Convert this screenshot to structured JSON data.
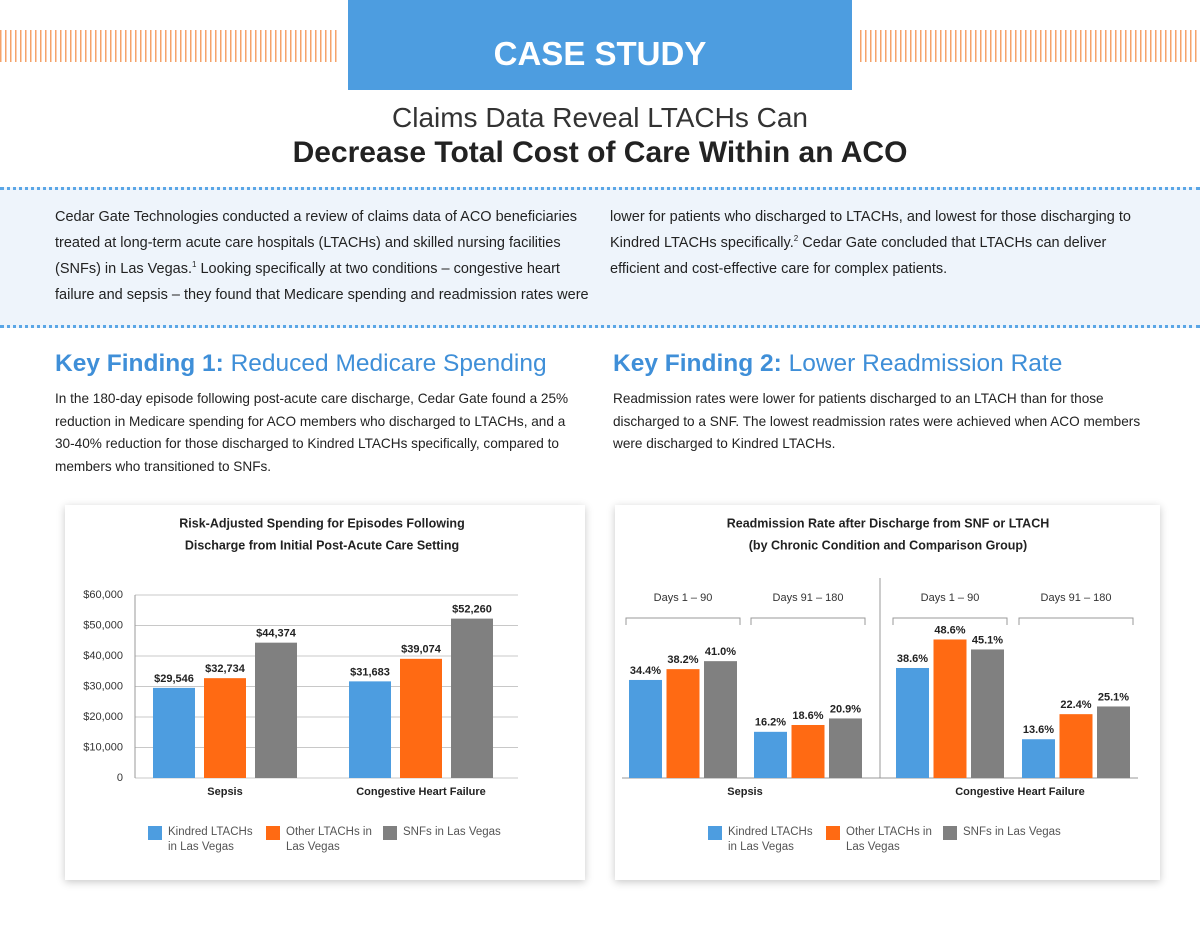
{
  "header": {
    "badge": "CASE STUDY",
    "title_line1": "Claims Data Reveal LTACHs Can",
    "title_line2": "Decrease Total Cost of Care Within an ACO"
  },
  "intro": {
    "left": [
      "Cedar Gate Technologies conducted a review of claims data of ACO beneficiaries treated at long-term acute care hospitals (LTACHs) and skilled nursing facilities (SNFs) in Las Vegas.",
      "1",
      " Looking specifically at two conditions – congestive heart failure and sepsis – they found that Medicare spending and readmission rates were"
    ],
    "right": [
      "lower for patients who discharged to LTACHs, and lowest for those discharging to Kindred LTACHs specifically.",
      "2",
      " Cedar Gate concluded that LTACHs can deliver efficient and cost-effective care for complex patients."
    ]
  },
  "findings": [
    {
      "label": "Key Finding 1:",
      "heading": "Reduced Medicare Spending",
      "text": "In the 180-day episode following post-acute care discharge, Cedar Gate found a 25% reduction in Medicare spending for ACO members who discharged to LTACHs, and a 30-40% reduction for those discharged to Kindred LTACHs specifically, compared to members who transitioned to SNFs."
    },
    {
      "label": "Key Finding 2:",
      "heading": "Lower Readmission Rate",
      "text": "Readmission rates were lower for patients discharged to an LTACH than for those discharged to a SNF. The lowest readmission rates were achieved when ACO members were discharged to Kindred LTACHs."
    }
  ],
  "chart_data": [
    {
      "type": "bar",
      "title": [
        "Risk-Adjusted Spending for Episodes Following",
        "Discharge from Initial Post-Acute Care Setting"
      ],
      "categories": [
        "Sepsis",
        "Congestive Heart Failure"
      ],
      "series": [
        {
          "name": "Kindred LTACHs in Las Vegas",
          "color": "#4d9de0",
          "values": [
            29546,
            31683
          ],
          "value_labels": [
            "$29,546",
            "$31,683"
          ]
        },
        {
          "name": "Other LTACHs in Las Vegas",
          "color": "#ff6a13",
          "values": [
            32734,
            39074
          ],
          "value_labels": [
            "$32,734",
            "$39,074"
          ]
        },
        {
          "name": "SNFs in Las Vegas",
          "color": "#808080",
          "values": [
            44374,
            52260
          ],
          "value_labels": [
            "$44,374",
            "$52,260"
          ]
        }
      ],
      "ylim": [
        0,
        60000
      ],
      "yticks": [
        0,
        {
          "value": 10000,
          "label": "$10,000"
        },
        {
          "value": 20000,
          "label": "$20,000"
        },
        {
          "value": 30000,
          "label": "$30,000"
        },
        {
          "value": 40000,
          "label": "$40,000"
        },
        {
          "value": 50000,
          "label": "$50,000"
        },
        {
          "value": 60000,
          "label": "$60,000"
        }
      ],
      "grid": true
    },
    {
      "type": "bar",
      "title": [
        "Readmission Rate after Discharge from SNF or LTACH",
        "(by Chronic Condition and Comparison Group)"
      ],
      "groups": [
        "Sepsis",
        "Congestive Heart Failure"
      ],
      "categories": [
        "Days 1 – 90",
        "Days 91 – 180",
        "Days 1 – 90",
        "Days 91 – 180"
      ],
      "series": [
        {
          "name": "Kindred LTACHs in Las Vegas",
          "color": "#4d9de0",
          "values": [
            34.4,
            16.2,
            38.6,
            13.6
          ],
          "value_labels": [
            "34.4%",
            "16.2%",
            "38.6%",
            "13.6%"
          ]
        },
        {
          "name": "Other LTACHs in Las Vegas",
          "color": "#ff6a13",
          "values": [
            38.2,
            18.6,
            48.6,
            22.4
          ],
          "value_labels": [
            "38.2%",
            "18.6%",
            "48.6%",
            "22.4%"
          ]
        },
        {
          "name": "SNFs in Las Vegas",
          "color": "#808080",
          "values": [
            41.0,
            20.9,
            45.1,
            25.1
          ],
          "value_labels": [
            "41.0%",
            "20.9%",
            "45.1%",
            "25.1%"
          ]
        }
      ]
    }
  ]
}
